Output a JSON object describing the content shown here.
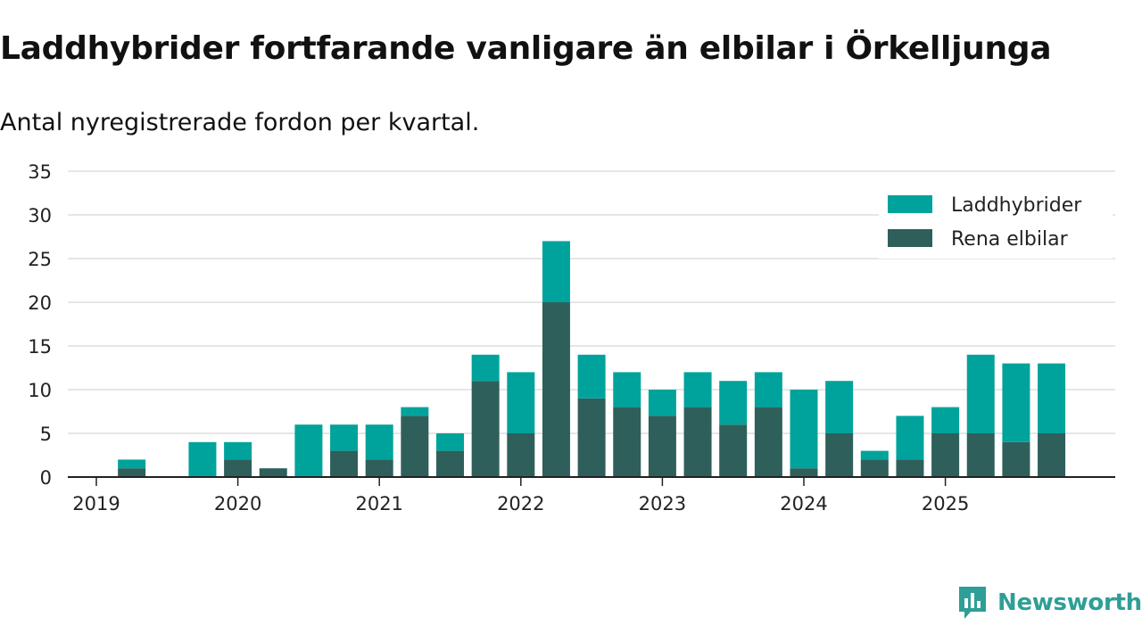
{
  "title": "Laddhybrider fortfarande vanligare än elbilar i Örkelljunga",
  "subtitle": "Antal nyregistrerade fordon per kvartal.",
  "brand": "Newsworthy",
  "colors": {
    "laddhybrider": "#00A39B",
    "rena_elbilar": "#2F5F5B",
    "grid": "#dddddd",
    "axis": "#222222",
    "brand": "#2f9e96"
  },
  "chart_data": {
    "type": "bar",
    "stacked": true,
    "categories": [
      "2019 Q1",
      "2019 Q2",
      "2019 Q3",
      "2019 Q4",
      "2020 Q1",
      "2020 Q2",
      "2020 Q3",
      "2020 Q4",
      "2021 Q1",
      "2021 Q2",
      "2021 Q3",
      "2021 Q4",
      "2022 Q1",
      "2022 Q2",
      "2022 Q3",
      "2022 Q4",
      "2023 Q1",
      "2023 Q2",
      "2023 Q3",
      "2023 Q4",
      "2024 Q1",
      "2024 Q2",
      "2024 Q3",
      "2024 Q4",
      "2025 Q1",
      "2025 Q2",
      "2025 Q3",
      "2025 Q4"
    ],
    "x_tick_labels": [
      "2019",
      "2020",
      "2021",
      "2022",
      "2023",
      "2024",
      "2025"
    ],
    "series": [
      {
        "name": "Rena elbilar",
        "values": [
          0,
          1,
          0,
          0,
          2,
          1,
          0,
          3,
          2,
          7,
          3,
          11,
          5,
          20,
          9,
          8,
          7,
          8,
          6,
          8,
          1,
          5,
          2,
          2,
          5,
          5,
          4,
          5
        ]
      },
      {
        "name": "Laddhybrider",
        "values": [
          0,
          1,
          0,
          4,
          2,
          0,
          6,
          3,
          4,
          1,
          2,
          3,
          7,
          7,
          5,
          4,
          3,
          4,
          5,
          4,
          9,
          6,
          1,
          5,
          3,
          9,
          9,
          8
        ]
      }
    ],
    "legend": [
      "Laddhybrider",
      "Rena elbilar"
    ],
    "legend_position": "top-right",
    "ylim": [
      0,
      35
    ],
    "yticks": [
      0,
      5,
      10,
      15,
      20,
      25,
      30,
      35
    ],
    "grid": true,
    "xlabel": "",
    "ylabel": ""
  }
}
